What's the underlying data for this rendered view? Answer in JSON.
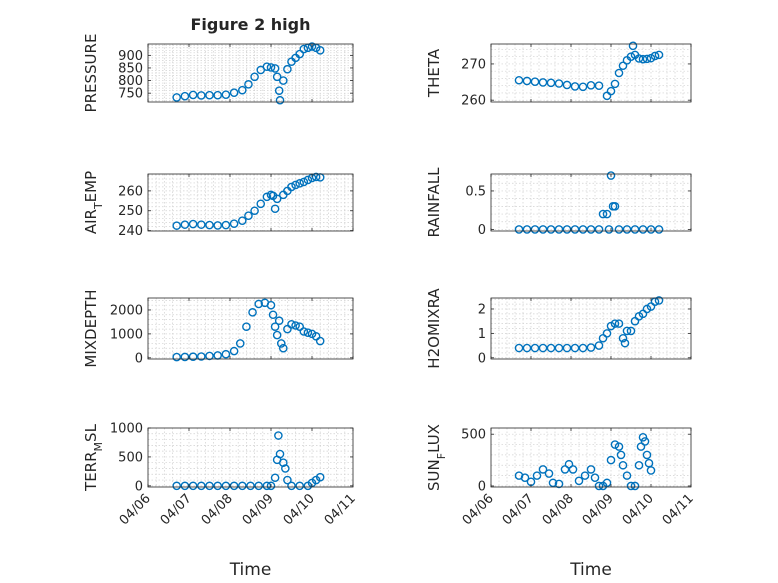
{
  "chart_data": [
    {
      "type": "scatter",
      "title": "Figure 2 high",
      "ylabel": "PRESSURE",
      "ylim": [
        715,
        945
      ],
      "yticks": [
        750,
        800,
        850,
        900
      ],
      "xlim": [
        0,
        5
      ],
      "xticks": [],
      "xlabel": "",
      "grid": true,
      "color": "#0072BD",
      "series": [
        {
          "points": [
            [
              0.7,
              733
            ],
            [
              0.9,
              738
            ],
            [
              1.1,
              743
            ],
            [
              1.3,
              741
            ],
            [
              1.5,
              742
            ],
            [
              1.7,
              742
            ],
            [
              1.9,
              744
            ],
            [
              2.1,
              752
            ],
            [
              2.3,
              762
            ],
            [
              2.45,
              785
            ],
            [
              2.6,
              815
            ],
            [
              2.75,
              842
            ],
            [
              2.9,
              855
            ],
            [
              3.0,
              852
            ],
            [
              3.1,
              848
            ],
            [
              3.15,
              815
            ],
            [
              3.2,
              760
            ],
            [
              3.22,
              722
            ],
            [
              3.3,
              800
            ],
            [
              3.4,
              845
            ],
            [
              3.5,
              875
            ],
            [
              3.6,
              890
            ],
            [
              3.7,
              905
            ],
            [
              3.8,
              925
            ],
            [
              3.9,
              930
            ],
            [
              4.0,
              935
            ],
            [
              4.1,
              930
            ],
            [
              4.2,
              920
            ]
          ]
        }
      ]
    },
    {
      "type": "scatter",
      "title": "",
      "ylabel": "THETA",
      "ylim": [
        259.5,
        275.5
      ],
      "yticks": [
        260,
        270
      ],
      "xlim": [
        0,
        5
      ],
      "xticks": [],
      "xlabel": "",
      "grid": true,
      "color": "#0072BD",
      "series": [
        {
          "points": [
            [
              0.7,
              265.5
            ],
            [
              0.9,
              265.3
            ],
            [
              1.1,
              265.1
            ],
            [
              1.3,
              264.9
            ],
            [
              1.5,
              264.8
            ],
            [
              1.7,
              264.6
            ],
            [
              1.9,
              264.2
            ],
            [
              2.1,
              263.8
            ],
            [
              2.3,
              263.7
            ],
            [
              2.5,
              264.1
            ],
            [
              2.7,
              264.0
            ],
            [
              2.9,
              261.2
            ],
            [
              3.0,
              262.5
            ],
            [
              3.1,
              264.5
            ],
            [
              3.2,
              267.5
            ],
            [
              3.3,
              269.5
            ],
            [
              3.4,
              271.0
            ],
            [
              3.5,
              272.0
            ],
            [
              3.55,
              275.0
            ],
            [
              3.6,
              272.5
            ],
            [
              3.7,
              271.5
            ],
            [
              3.8,
              271.3
            ],
            [
              3.9,
              271.4
            ],
            [
              4.0,
              271.6
            ],
            [
              4.1,
              272.2
            ],
            [
              4.2,
              272.5
            ]
          ]
        }
      ]
    },
    {
      "type": "scatter",
      "title": "",
      "ylabel": "AIR_TEMP",
      "ylim": [
        239.8,
        268.5
      ],
      "yticks": [
        240,
        250,
        260
      ],
      "xlim": [
        0,
        5
      ],
      "xticks": [],
      "xlabel": "",
      "grid": true,
      "color": "#0072BD",
      "series": [
        {
          "points": [
            [
              0.7,
              242.5
            ],
            [
              0.9,
              243.0
            ],
            [
              1.1,
              243.3
            ],
            [
              1.3,
              243.0
            ],
            [
              1.5,
              242.8
            ],
            [
              1.7,
              242.6
            ],
            [
              1.9,
              242.8
            ],
            [
              2.1,
              243.5
            ],
            [
              2.3,
              245.0
            ],
            [
              2.45,
              247.5
            ],
            [
              2.6,
              250.0
            ],
            [
              2.75,
              253.5
            ],
            [
              2.9,
              257.0
            ],
            [
              3.0,
              258.0
            ],
            [
              3.05,
              257.5
            ],
            [
              3.1,
              251.0
            ],
            [
              3.15,
              256.0
            ],
            [
              3.3,
              258.0
            ],
            [
              3.4,
              260.0
            ],
            [
              3.5,
              262.0
            ],
            [
              3.6,
              263.0
            ],
            [
              3.7,
              263.8
            ],
            [
              3.8,
              264.5
            ],
            [
              3.9,
              265.5
            ],
            [
              4.0,
              266.5
            ],
            [
              4.1,
              267.0
            ],
            [
              4.2,
              266.8
            ]
          ]
        }
      ]
    },
    {
      "type": "scatter",
      "title": "",
      "ylabel": "RAINFALL",
      "ylim": [
        -0.02,
        0.72
      ],
      "yticks": [
        0,
        0.5
      ],
      "xlim": [
        0,
        5
      ],
      "xticks": [],
      "xlabel": "",
      "grid": true,
      "color": "#0072BD",
      "series": [
        {
          "points": [
            [
              0.7,
              0
            ],
            [
              0.9,
              0
            ],
            [
              1.1,
              0
            ],
            [
              1.3,
              0
            ],
            [
              1.5,
              0
            ],
            [
              1.7,
              0
            ],
            [
              1.9,
              0
            ],
            [
              2.1,
              0
            ],
            [
              2.3,
              0
            ],
            [
              2.5,
              0
            ],
            [
              2.7,
              0
            ],
            [
              2.8,
              0.2
            ],
            [
              2.9,
              0.2
            ],
            [
              2.95,
              0
            ],
            [
              3.0,
              0.7
            ],
            [
              3.05,
              0.3
            ],
            [
              3.1,
              0.3
            ],
            [
              3.2,
              0
            ],
            [
              3.4,
              0
            ],
            [
              3.6,
              0
            ],
            [
              3.8,
              0
            ],
            [
              4.0,
              0
            ],
            [
              4.2,
              0
            ]
          ]
        }
      ]
    },
    {
      "type": "scatter",
      "title": "",
      "ylabel": "MIXDEPTH",
      "ylim": [
        -50,
        2500
      ],
      "yticks": [
        0,
        1000,
        2000
      ],
      "xlim": [
        0,
        5
      ],
      "xticks": [],
      "xlabel": "",
      "grid": true,
      "color": "#0072BD",
      "series": [
        {
          "points": [
            [
              0.7,
              30
            ],
            [
              0.9,
              35
            ],
            [
              1.1,
              45
            ],
            [
              1.3,
              55
            ],
            [
              1.5,
              80
            ],
            [
              1.7,
              100
            ],
            [
              1.9,
              150
            ],
            [
              2.1,
              280
            ],
            [
              2.25,
              600
            ],
            [
              2.4,
              1300
            ],
            [
              2.55,
              1900
            ],
            [
              2.7,
              2250
            ],
            [
              2.85,
              2300
            ],
            [
              3.0,
              2200
            ],
            [
              3.05,
              1800
            ],
            [
              3.1,
              1300
            ],
            [
              3.15,
              950
            ],
            [
              3.2,
              1550
            ],
            [
              3.25,
              600
            ],
            [
              3.3,
              400
            ],
            [
              3.4,
              1200
            ],
            [
              3.5,
              1400
            ],
            [
              3.6,
              1350
            ],
            [
              3.7,
              1300
            ],
            [
              3.8,
              1100
            ],
            [
              3.9,
              1050
            ],
            [
              4.0,
              1000
            ],
            [
              4.1,
              900
            ],
            [
              4.2,
              700
            ]
          ]
        }
      ]
    },
    {
      "type": "scatter",
      "title": "",
      "ylabel": "H2OMIXRA",
      "ylim": [
        -0.05,
        2.45
      ],
      "yticks": [
        0,
        1,
        2
      ],
      "xlim": [
        0,
        5
      ],
      "xticks": [],
      "xlabel": "",
      "grid": true,
      "color": "#0072BD",
      "series": [
        {
          "points": [
            [
              0.7,
              0.4
            ],
            [
              0.9,
              0.4
            ],
            [
              1.1,
              0.4
            ],
            [
              1.3,
              0.4
            ],
            [
              1.5,
              0.4
            ],
            [
              1.7,
              0.4
            ],
            [
              1.9,
              0.4
            ],
            [
              2.1,
              0.4
            ],
            [
              2.3,
              0.4
            ],
            [
              2.5,
              0.42
            ],
            [
              2.7,
              0.5
            ],
            [
              2.8,
              0.8
            ],
            [
              2.9,
              1.0
            ],
            [
              3.0,
              1.3
            ],
            [
              3.1,
              1.4
            ],
            [
              3.2,
              1.4
            ],
            [
              3.3,
              0.8
            ],
            [
              3.35,
              0.6
            ],
            [
              3.4,
              1.1
            ],
            [
              3.5,
              1.1
            ],
            [
              3.6,
              1.5
            ],
            [
              3.7,
              1.7
            ],
            [
              3.8,
              1.8
            ],
            [
              3.9,
              2.0
            ],
            [
              4.0,
              2.1
            ],
            [
              4.1,
              2.3
            ],
            [
              4.2,
              2.35
            ]
          ]
        }
      ]
    },
    {
      "type": "scatter",
      "title": "",
      "ylabel": "TERR_MSL",
      "ylim": [
        -20,
        1000
      ],
      "yticks": [
        0,
        500,
        1000
      ],
      "xlim": [
        0,
        5
      ],
      "xticks": [
        "04/06",
        "04/07",
        "04/08",
        "04/09",
        "04/10",
        "04/11"
      ],
      "xlabel": "Time",
      "grid": true,
      "color": "#0072BD",
      "series": [
        {
          "points": [
            [
              0.7,
              0
            ],
            [
              0.9,
              0
            ],
            [
              1.1,
              0
            ],
            [
              1.3,
              0
            ],
            [
              1.5,
              0
            ],
            [
              1.7,
              0
            ],
            [
              1.9,
              0
            ],
            [
              2.1,
              0
            ],
            [
              2.3,
              0
            ],
            [
              2.5,
              0
            ],
            [
              2.7,
              0
            ],
            [
              2.9,
              0
            ],
            [
              3.0,
              0
            ],
            [
              3.1,
              140
            ],
            [
              3.15,
              450
            ],
            [
              3.18,
              870
            ],
            [
              3.22,
              550
            ],
            [
              3.3,
              400
            ],
            [
              3.35,
              300
            ],
            [
              3.4,
              100
            ],
            [
              3.5,
              0
            ],
            [
              3.7,
              0
            ],
            [
              3.9,
              0
            ],
            [
              4.0,
              50
            ],
            [
              4.1,
              100
            ],
            [
              4.2,
              150
            ]
          ]
        }
      ]
    },
    {
      "type": "scatter",
      "title": "",
      "ylabel": "SUN_FLUX",
      "ylim": [
        -10,
        560
      ],
      "yticks": [
        0,
        500
      ],
      "xlim": [
        0,
        5
      ],
      "xticks": [
        "04/06",
        "04/07",
        "04/08",
        "04/09",
        "04/10",
        "04/11"
      ],
      "xlabel": "Time",
      "grid": true,
      "color": "#0072BD",
      "series": [
        {
          "points": [
            [
              0.7,
              100
            ],
            [
              0.85,
              80
            ],
            [
              1.0,
              40
            ],
            [
              1.15,
              100
            ],
            [
              1.3,
              160
            ],
            [
              1.45,
              120
            ],
            [
              1.55,
              30
            ],
            [
              1.7,
              20
            ],
            [
              1.85,
              160
            ],
            [
              1.95,
              210
            ],
            [
              2.05,
              160
            ],
            [
              2.2,
              50
            ],
            [
              2.35,
              100
            ],
            [
              2.5,
              160
            ],
            [
              2.6,
              80
            ],
            [
              2.7,
              0
            ],
            [
              2.8,
              0
            ],
            [
              2.9,
              30
            ],
            [
              3.0,
              250
            ],
            [
              3.1,
              400
            ],
            [
              3.2,
              380
            ],
            [
              3.25,
              300
            ],
            [
              3.3,
              200
            ],
            [
              3.4,
              100
            ],
            [
              3.5,
              0
            ],
            [
              3.6,
              0
            ],
            [
              3.7,
              200
            ],
            [
              3.75,
              380
            ],
            [
              3.8,
              470
            ],
            [
              3.85,
              430
            ],
            [
              3.9,
              300
            ],
            [
              3.95,
              220
            ],
            [
              4.0,
              150
            ]
          ]
        }
      ]
    }
  ]
}
